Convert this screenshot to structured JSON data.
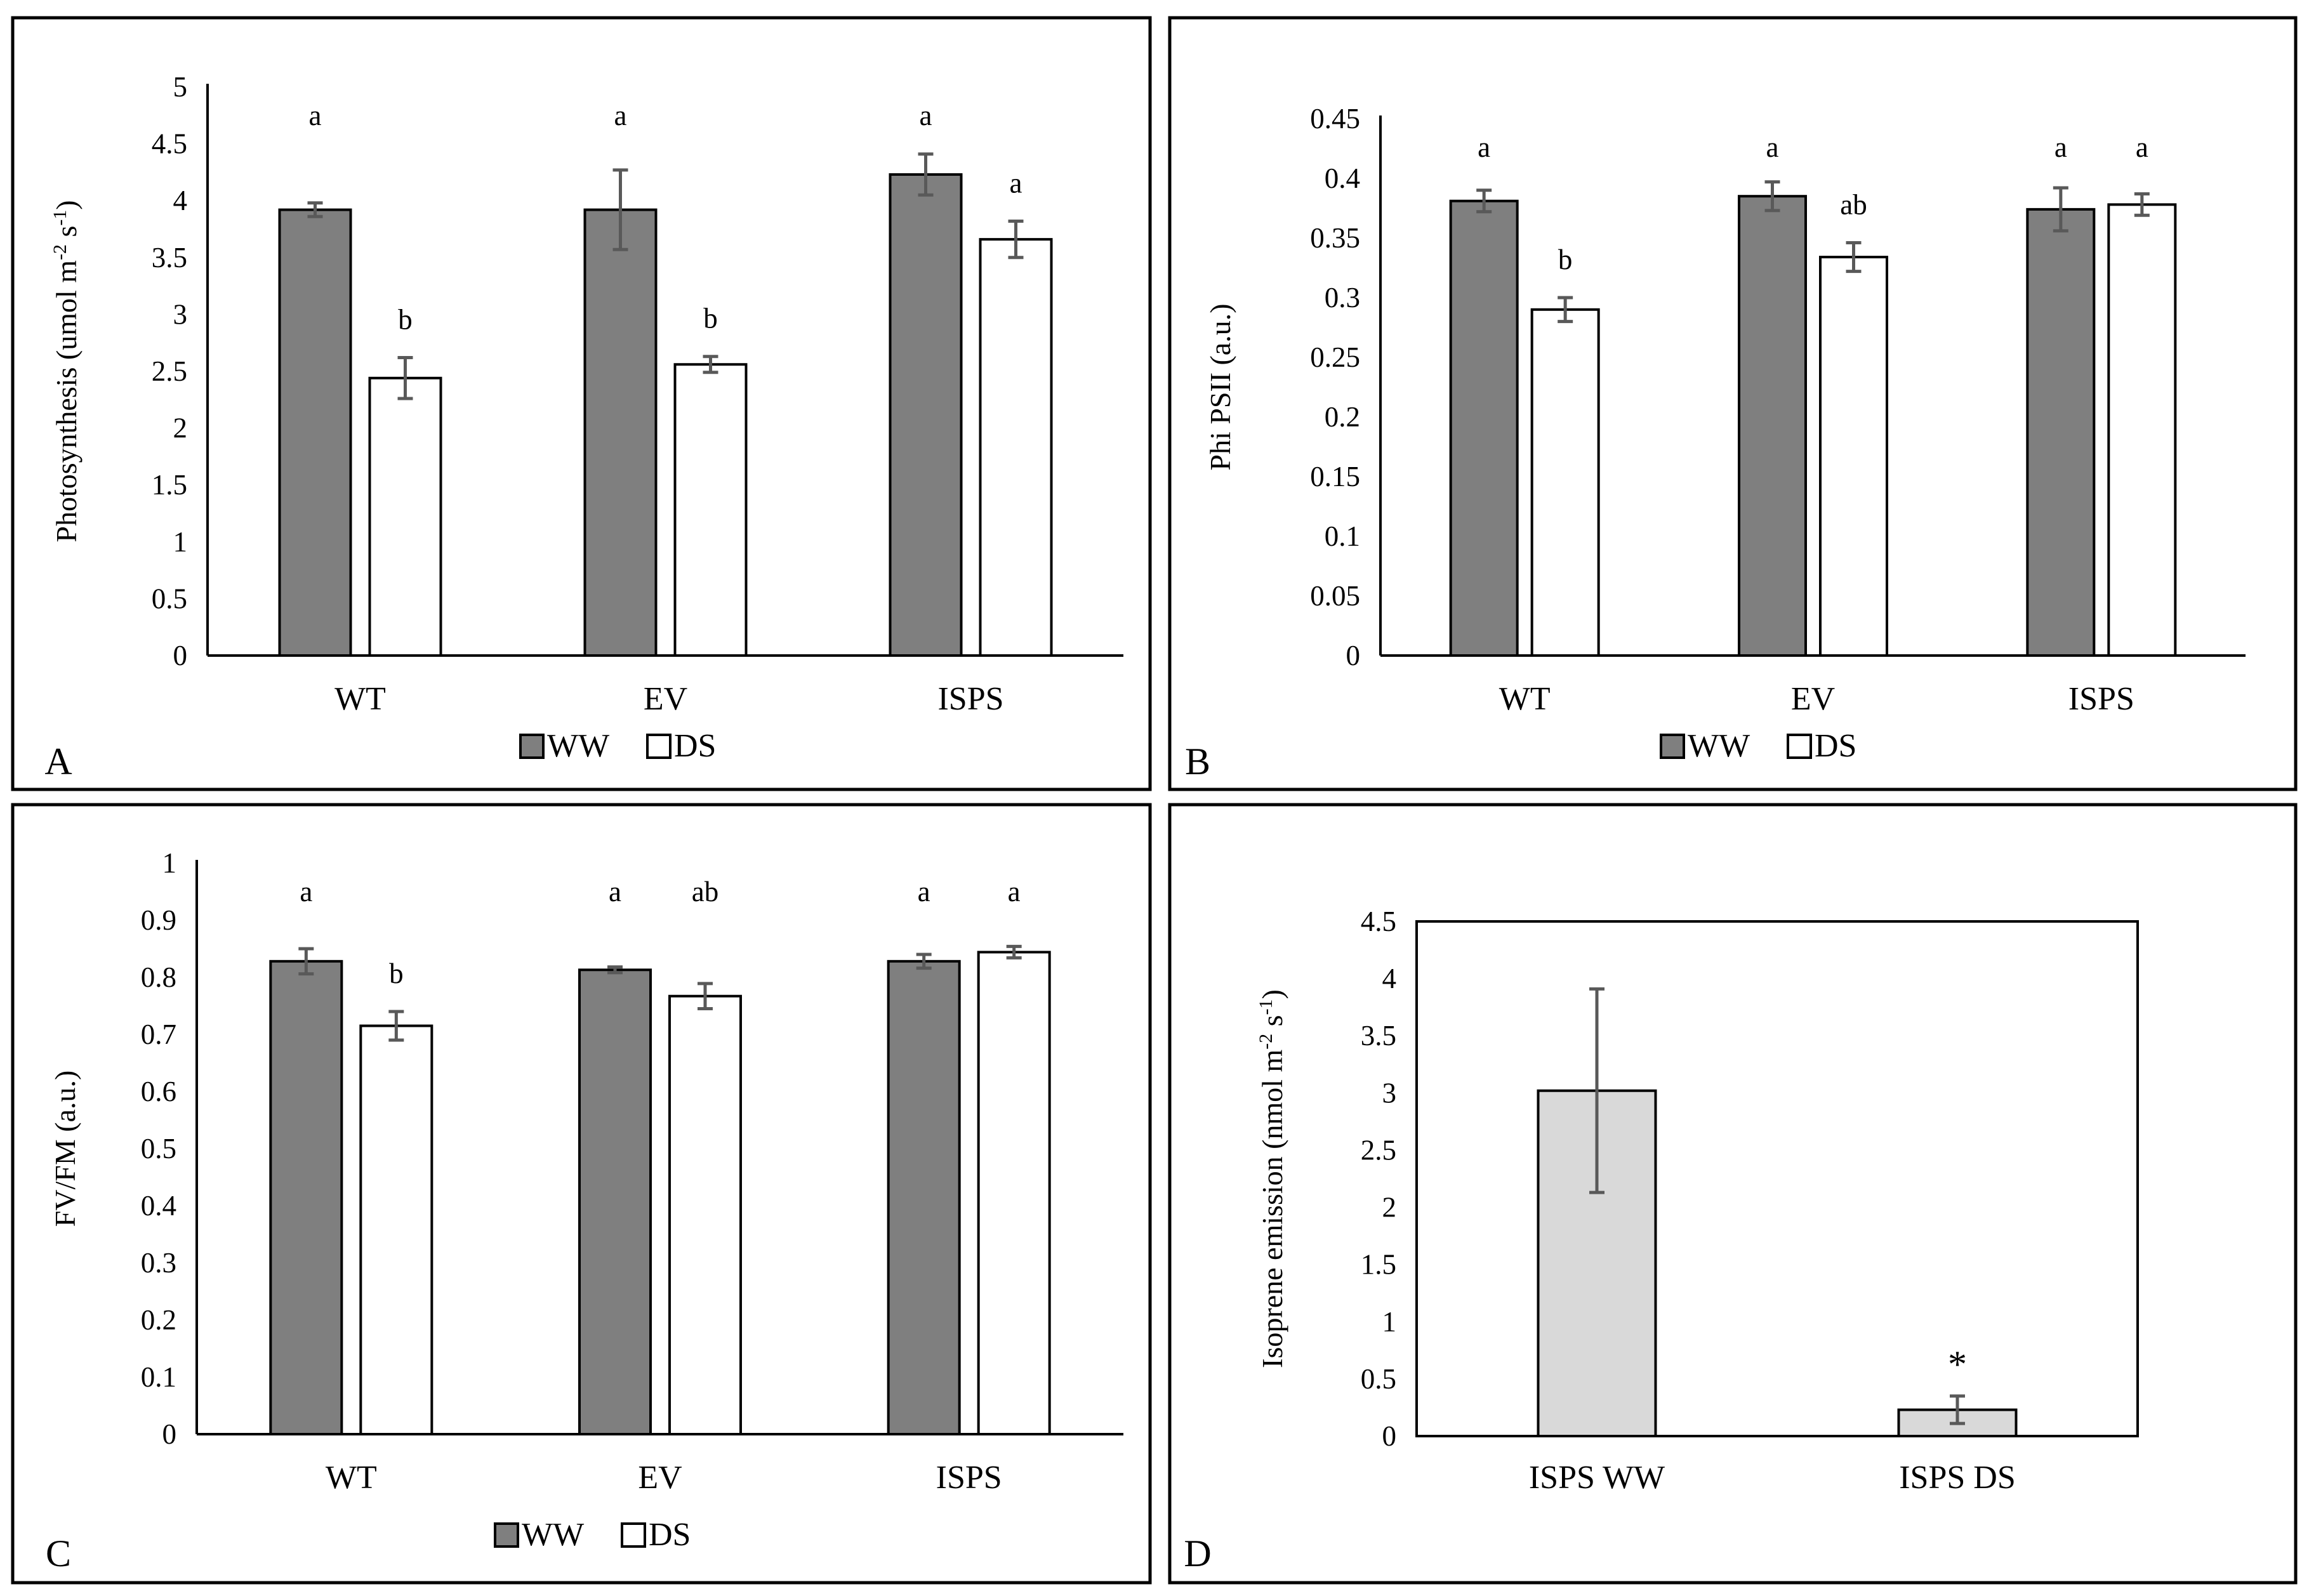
{
  "colors": {
    "ww": "#7f7f7f",
    "ds": "#ffffff",
    "isoprene": "#d9d9d9",
    "error_bar": "#595959",
    "axis": "#000000",
    "frame": "#000000"
  },
  "chart_data": [
    {
      "panel_label": "A",
      "type": "bar",
      "ylabel": "Photosynthesis (umol m",
      "ylabel_unit_sup1": "-2",
      "ylabel_unit_mid": " s",
      "ylabel_unit_sup2": "-1",
      "ylabel_unit_end": ")",
      "ylim": [
        0,
        5
      ],
      "yticks": [
        "0",
        "0.5",
        "1",
        "1.5",
        "2",
        "2.5",
        "3",
        "3.5",
        "4",
        "4.5",
        "5"
      ],
      "ytick_values": [
        0,
        0.5,
        1,
        1.5,
        2,
        2.5,
        3,
        3.5,
        4,
        4.5,
        5
      ],
      "categories": [
        "WT",
        "EV",
        "ISPS"
      ],
      "series": [
        {
          "name": "WW",
          "values": [
            3.92,
            3.92,
            4.23
          ],
          "errors": [
            0.06,
            0.35,
            0.18
          ],
          "sig": [
            "a",
            "a",
            "a"
          ]
        },
        {
          "name": "DS",
          "values": [
            2.44,
            2.56,
            3.66
          ],
          "errors": [
            0.18,
            0.07,
            0.16
          ],
          "sig": [
            "b",
            "b",
            "a"
          ]
        }
      ],
      "legend": [
        "WW",
        "DS"
      ]
    },
    {
      "panel_label": "B",
      "type": "bar",
      "ylabel": "Phi PSII (a.u.)",
      "ylim": [
        0,
        0.45
      ],
      "yticks": [
        "0",
        "0.05",
        "0.1",
        "0.15",
        "0.2",
        "0.25",
        "0.3",
        "0.35",
        "0.4",
        "0.45"
      ],
      "ytick_values": [
        0,
        0.05,
        0.1,
        0.15,
        0.2,
        0.25,
        0.3,
        0.35,
        0.4,
        0.45
      ],
      "categories": [
        "WT",
        "EV",
        "ISPS"
      ],
      "series": [
        {
          "name": "WW",
          "values": [
            0.381,
            0.385,
            0.374
          ],
          "errors": [
            0.009,
            0.012,
            0.018
          ],
          "sig": [
            "a",
            "a",
            "a"
          ]
        },
        {
          "name": "DS",
          "values": [
            0.29,
            0.334,
            0.378
          ],
          "errors": [
            0.01,
            0.012,
            0.009
          ],
          "sig": [
            "b",
            "ab",
            "a"
          ]
        }
      ],
      "legend": [
        "WW",
        "DS"
      ]
    },
    {
      "panel_label": "C",
      "type": "bar",
      "ylabel": "FV/FM (a.u.)",
      "ylim": [
        0,
        1
      ],
      "yticks": [
        "0",
        "0.1",
        "0.2",
        "0.3",
        "0.4",
        "0.5",
        "0.6",
        "0.7",
        "0.8",
        "0.9",
        "1"
      ],
      "ytick_values": [
        0,
        0.1,
        0.2,
        0.3,
        0.4,
        0.5,
        0.6,
        0.7,
        0.8,
        0.9,
        1
      ],
      "categories": [
        "WT",
        "EV",
        "ISPS"
      ],
      "series": [
        {
          "name": "WW",
          "values": [
            0.828,
            0.813,
            0.828
          ],
          "errors": [
            0.022,
            0.005,
            0.012
          ],
          "sig": [
            "a",
            "a",
            "a"
          ]
        },
        {
          "name": "DS",
          "values": [
            0.715,
            0.767,
            0.844
          ],
          "errors": [
            0.025,
            0.022,
            0.01
          ],
          "sig": [
            "b",
            "ab",
            "a"
          ]
        }
      ],
      "legend": [
        "WW",
        "DS"
      ]
    },
    {
      "panel_label": "D",
      "type": "bar",
      "ylabel": "Isoprene emission (nmol m",
      "ylabel_unit_sup1": "-2",
      "ylabel_unit_mid": " s",
      "ylabel_unit_sup2": "-1",
      "ylabel_unit_end": ")",
      "ylim": [
        0,
        4.5
      ],
      "yticks": [
        "0",
        "0.5",
        "1",
        "1.5",
        "2",
        "2.5",
        "3",
        "3.5",
        "4",
        "4.5"
      ],
      "ytick_values": [
        0,
        0.5,
        1,
        1.5,
        2,
        2.5,
        3,
        3.5,
        4,
        4.5
      ],
      "categories": [
        "ISPS WW",
        "ISPS DS"
      ],
      "values": [
        3.02,
        0.23
      ],
      "errors": [
        0.89,
        0.12
      ],
      "sig": [
        "",
        "*"
      ]
    }
  ]
}
